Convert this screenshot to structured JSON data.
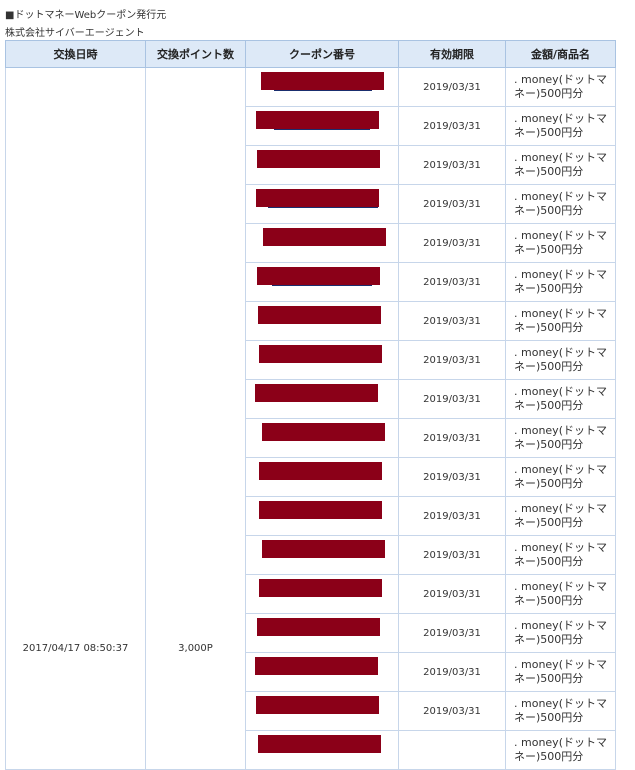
{
  "header": {
    "title": "■ドットマネーWebクーポン発行元",
    "issuer": "株式会社サイバーエージェント"
  },
  "table": {
    "columns": [
      "交換日時",
      "交換ポイント数",
      "クーポン番号",
      "有効期限",
      "金額/商品名"
    ],
    "datetime": "2017/04/17 08:50:37",
    "points": "3,000P",
    "rows": [
      {
        "expiry": "2019/03/31",
        "item": ". money(ドットマネー)500円分"
      },
      {
        "expiry": "2019/03/31",
        "item": ". money(ドットマネー)500円分"
      },
      {
        "expiry": "2019/03/31",
        "item": ". money(ドットマネー)500円分"
      },
      {
        "expiry": "2019/03/31",
        "item": ". money(ドットマネー)500円分"
      },
      {
        "expiry": "2019/03/31",
        "item": ". money(ドットマネー)500円分"
      },
      {
        "expiry": "2019/03/31",
        "item": ". money(ドットマネー)500円分"
      },
      {
        "expiry": "2019/03/31",
        "item": ". money(ドットマネー)500円分"
      },
      {
        "expiry": "2019/03/31",
        "item": ". money(ドットマネー)500円分"
      },
      {
        "expiry": "2019/03/31",
        "item": ". money(ドットマネー)500円分"
      },
      {
        "expiry": "2019/03/31",
        "item": ". money(ドットマネー)500円分"
      },
      {
        "expiry": "2019/03/31",
        "item": ". money(ドットマネー)500円分"
      },
      {
        "expiry": "2019/03/31",
        "item": ". money(ドットマネー)500円分"
      },
      {
        "expiry": "2019/03/31",
        "item": ". money(ドットマネー)500円分"
      },
      {
        "expiry": "2019/03/31",
        "item": ". money(ドットマネー)500円分"
      },
      {
        "expiry": "2019/03/31",
        "item": ". money(ドットマネー)500円分"
      },
      {
        "expiry": "2019/03/31",
        "item": ". money(ドットマネー)500円分"
      },
      {
        "expiry": "2019/03/31",
        "item": ". money(ドットマネー)500円分"
      },
      {
        "item": ". money(ドットマネー)500円分"
      }
    ]
  }
}
